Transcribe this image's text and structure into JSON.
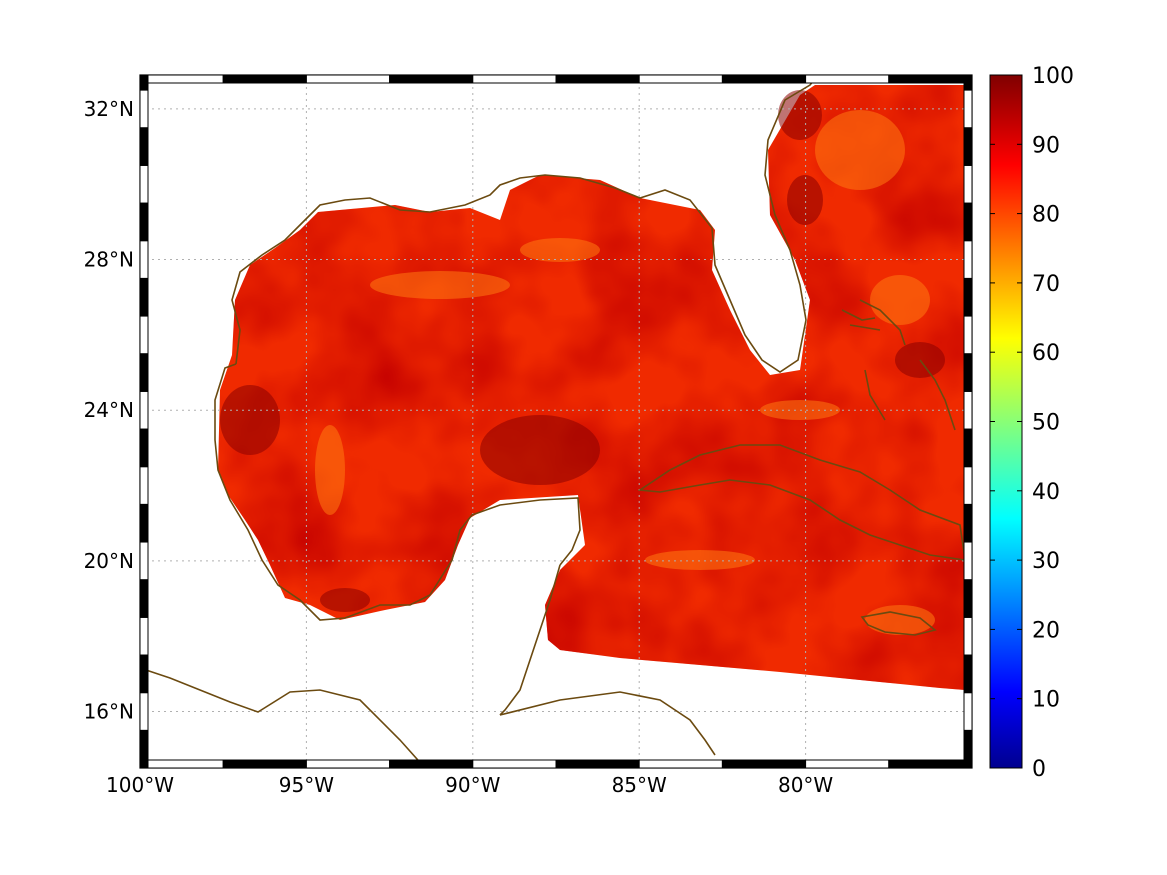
{
  "map": {
    "lon_range": [
      -100,
      -75
    ],
    "lat_range": [
      14.5,
      32.9
    ],
    "lon_ticks": [
      {
        "value": -100,
        "label": "100°W"
      },
      {
        "value": -95,
        "label": "95°W"
      },
      {
        "value": -90,
        "label": "90°W"
      },
      {
        "value": -85,
        "label": "85°W"
      },
      {
        "value": -80,
        "label": "80°W"
      }
    ],
    "lat_ticks": [
      {
        "value": 32,
        "label": "32°N"
      },
      {
        "value": 28,
        "label": "28°N"
      },
      {
        "value": 24,
        "label": "24°N"
      },
      {
        "value": 20,
        "label": "20°N"
      },
      {
        "value": 16,
        "label": "16°N"
      }
    ],
    "grid": "dotted",
    "coastline_color": "#6b4a10",
    "field_colormap": "jet"
  },
  "colorbar": {
    "range": [
      0,
      100
    ],
    "ticks": [
      "0",
      "10",
      "20",
      "30",
      "40",
      "50",
      "60",
      "70",
      "80",
      "90",
      "100"
    ],
    "colors": [
      "#00008f",
      "#0000ff",
      "#00ffff",
      "#ffff00",
      "#ff0000",
      "#800000"
    ]
  }
}
